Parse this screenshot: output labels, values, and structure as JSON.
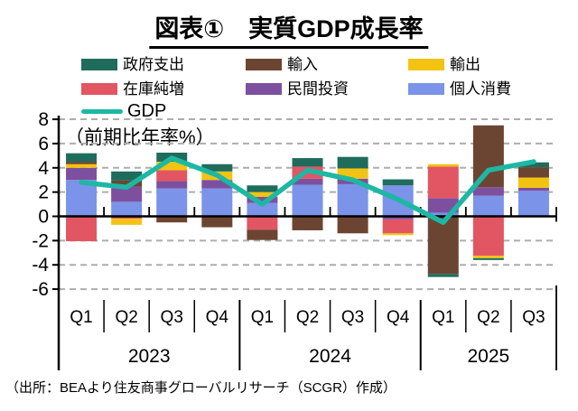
{
  "title": "図表①　実質GDP成長率",
  "axis_note": "（前期比年率%）",
  "source": "（出所：BEAより住友商事グローバルリサーチ（SCGR）作成）",
  "colors": {
    "government": "#1F6C5C",
    "imports": "#6C4532",
    "exports": "#F2C311",
    "inventories": "#E25563",
    "investment": "#7D509F",
    "consumption": "#7B93E8",
    "gdp_line": "#1CB8A3",
    "grid": "#ADADAD",
    "axis": "#000000"
  },
  "legend": [
    {
      "label": "政府支出",
      "color": "#1F6C5C",
      "type": "box"
    },
    {
      "label": "輸入",
      "color": "#6C4532",
      "type": "box"
    },
    {
      "label": "輸出",
      "color": "#F2C311",
      "type": "box"
    },
    {
      "label": "在庫純増",
      "color": "#E25563",
      "type": "box"
    },
    {
      "label": "民間投資",
      "color": "#7D509F",
      "type": "box"
    },
    {
      "label": "個人消費",
      "color": "#7B93E8",
      "type": "box"
    },
    {
      "label": "GDP",
      "color": "#1CB8A3",
      "type": "line"
    }
  ],
  "chart_data": {
    "type": "bar",
    "subtype": "stacked-bar-with-line",
    "title": "実質GDP成長率",
    "ylabel": "前期比年率%",
    "ylim": [
      -6,
      8
    ],
    "ytick_step": 2,
    "yticks": [
      8,
      6,
      4,
      2,
      0,
      -2,
      -4,
      -6
    ],
    "grid": true,
    "legend_position": "top",
    "quarters": [
      "Q1",
      "Q2",
      "Q3",
      "Q4",
      "Q1",
      "Q2",
      "Q3",
      "Q4",
      "Q1",
      "Q2",
      "Q3"
    ],
    "year_groups": [
      {
        "label": "2023",
        "span": 4
      },
      {
        "label": "2024",
        "span": 4
      },
      {
        "label": "2025",
        "span": 3
      }
    ],
    "categories": [
      "2023 Q1",
      "2023 Q2",
      "2023 Q3",
      "2023 Q4",
      "2024 Q1",
      "2024 Q2",
      "2024 Q3",
      "2024 Q4",
      "2025 Q1",
      "2025 Q2",
      "2025 Q3"
    ],
    "series": [
      {
        "name": "個人消費",
        "color": "#7B93E8",
        "values": [
          3.0,
          1.2,
          2.3,
          2.3,
          1.1,
          2.6,
          2.65,
          2.55,
          0.3,
          1.7,
          2.1
        ]
      },
      {
        "name": "民間投資",
        "color": "#7D509F",
        "values": [
          1.0,
          1.25,
          0.6,
          0.7,
          0.5,
          0.5,
          0.45,
          -0.25,
          1.2,
          0.7,
          0.25
        ]
      },
      {
        "name": "在庫純増",
        "color": "#E25563",
        "values": [
          -2.05,
          -0.2,
          0.9,
          0,
          -1.1,
          1.0,
          0,
          -1.15,
          2.6,
          -3.25,
          0
        ]
      },
      {
        "name": "輸出",
        "color": "#F2C311",
        "values": [
          0.3,
          -0.5,
          0.7,
          0.7,
          0.4,
          0,
          0.85,
          -0.15,
          0.2,
          -0.2,
          0.85
        ]
      },
      {
        "name": "輸入",
        "color": "#6C4532",
        "values": [
          0.2,
          0.5,
          -0.5,
          -0.9,
          -0.85,
          -1.15,
          -1.4,
          0,
          -4.75,
          5.1,
          0.85
        ]
      },
      {
        "name": "政府支出",
        "color": "#1F6C5C",
        "values": [
          0.7,
          0.75,
          0.75,
          0.6,
          0.55,
          0.7,
          0.95,
          0.5,
          -0.25,
          -0.15,
          0.4
        ]
      }
    ],
    "line": {
      "name": "GDP",
      "color": "#1CB8A3",
      "values": [
        2.8,
        2.4,
        4.8,
        3.4,
        1.0,
        3.8,
        3.0,
        1.4,
        -0.5,
        3.8,
        4.5
      ]
    }
  }
}
